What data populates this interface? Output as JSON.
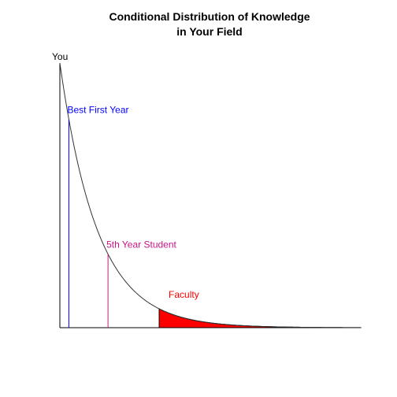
{
  "chart_data": {
    "type": "line",
    "title": "Conditional Distribution of Knowledge\nin Your Field",
    "title_lines": [
      "Conditional Distribution of Knowledge",
      "in Your Field"
    ],
    "xlabel": "",
    "ylabel": "",
    "grid": false,
    "curve": {
      "shape": "exponential-decay",
      "rate": 0.8,
      "x_range": [
        0,
        10
      ]
    },
    "xlim": [
      0,
      10
    ],
    "ylim": [
      0,
      1
    ],
    "markers": [
      {
        "label": "Best First Year",
        "x": 0.3,
        "color": "#0000FF"
      },
      {
        "label": "5th Year Student",
        "x": 1.6,
        "color": "#C71585"
      }
    ],
    "shaded_region": {
      "label": "Faculty",
      "from_x": 3.3,
      "to_x": 10,
      "color": "#FF0000"
    },
    "you_label": "You"
  }
}
